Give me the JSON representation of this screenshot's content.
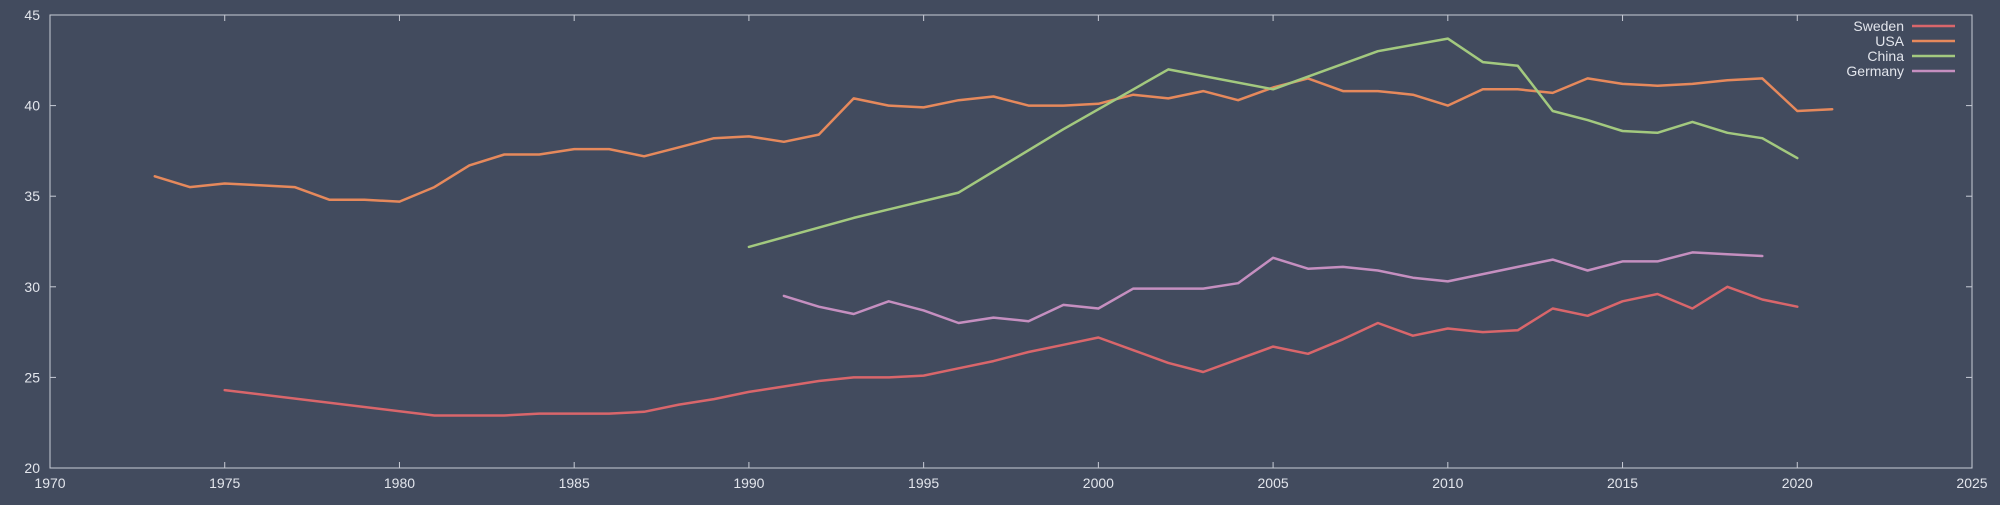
{
  "chart_data": {
    "type": "line",
    "title": "",
    "xlabel": "",
    "ylabel": "",
    "xlim": [
      1970,
      2025
    ],
    "ylim": [
      20,
      45
    ],
    "xticks": [
      1970,
      1975,
      1980,
      1985,
      1990,
      1995,
      2000,
      2005,
      2010,
      2015,
      2020,
      2025
    ],
    "yticks": [
      20,
      25,
      30,
      35,
      40,
      45
    ],
    "grid": false,
    "legend_position": "top-right",
    "colors": {
      "background": "#424b5e",
      "axis": "#c8ccd6",
      "text": "#e2e5ec"
    },
    "series": [
      {
        "name": "Sweden",
        "color": "#d9666b",
        "x": [
          1975,
          1981,
          1982,
          1983,
          1984,
          1985,
          1986,
          1987,
          1988,
          1989,
          1990,
          1991,
          1992,
          1993,
          1994,
          1995,
          1996,
          1997,
          1998,
          1999,
          2000,
          2001,
          2002,
          2003,
          2004,
          2005,
          2006,
          2007,
          2008,
          2009,
          2010,
          2011,
          2012,
          2013,
          2014,
          2015,
          2016,
          2017,
          2018,
          2019,
          2020
        ],
        "y": [
          24.3,
          22.9,
          22.9,
          22.9,
          23.0,
          23.0,
          23.0,
          23.1,
          23.5,
          23.8,
          24.2,
          24.5,
          24.8,
          25.0,
          25.0,
          25.1,
          25.5,
          25.9,
          26.4,
          26.8,
          27.2,
          26.5,
          25.8,
          25.3,
          26.0,
          26.7,
          26.3,
          27.1,
          28.0,
          27.3,
          27.7,
          27.5,
          27.6,
          28.8,
          28.4,
          29.2,
          29.6,
          28.8,
          30.0,
          29.3,
          28.9
        ]
      },
      {
        "name": "USA",
        "color": "#e6895c",
        "x": [
          1973,
          1974,
          1975,
          1976,
          1977,
          1978,
          1979,
          1980,
          1981,
          1982,
          1983,
          1984,
          1985,
          1986,
          1987,
          1988,
          1989,
          1990,
          1991,
          1992,
          1993,
          1994,
          1995,
          1996,
          1997,
          1998,
          1999,
          2000,
          2001,
          2002,
          2003,
          2004,
          2005,
          2006,
          2007,
          2008,
          2009,
          2010,
          2011,
          2012,
          2013,
          2014,
          2015,
          2016,
          2017,
          2018,
          2019,
          2020,
          2021
        ],
        "y": [
          36.1,
          35.5,
          35.7,
          35.6,
          35.5,
          34.8,
          34.8,
          34.7,
          35.5,
          36.7,
          37.3,
          37.3,
          37.6,
          37.6,
          37.2,
          37.7,
          38.2,
          38.3,
          38.0,
          38.4,
          40.4,
          40.0,
          39.9,
          40.3,
          40.5,
          40.0,
          40.0,
          40.1,
          40.6,
          40.4,
          40.8,
          40.3,
          41.0,
          41.5,
          40.8,
          40.8,
          40.6,
          40.0,
          40.9,
          40.9,
          40.7,
          41.5,
          41.2,
          41.1,
          41.2,
          41.4,
          41.5,
          39.7,
          39.8
        ]
      },
      {
        "name": "China",
        "color": "#a3c97f",
        "x": [
          1990,
          1993,
          1996,
          1999,
          2002,
          2005,
          2008,
          2010,
          2011,
          2012,
          2013,
          2014,
          2015,
          2016,
          2017,
          2018,
          2019,
          2020
        ],
        "y": [
          32.2,
          33.8,
          35.2,
          38.7,
          42.0,
          40.9,
          43.0,
          43.7,
          42.4,
          42.2,
          39.7,
          39.2,
          38.6,
          38.5,
          39.1,
          38.5,
          38.2,
          37.1
        ]
      },
      {
        "name": "Germany",
        "color": "#c58fc0",
        "x": [
          1991,
          1992,
          1993,
          1994,
          1995,
          1996,
          1997,
          1998,
          1999,
          2000,
          2001,
          2002,
          2003,
          2004,
          2005,
          2006,
          2007,
          2008,
          2009,
          2010,
          2011,
          2012,
          2013,
          2014,
          2015,
          2016,
          2017,
          2018,
          2019
        ],
        "y": [
          29.5,
          28.9,
          28.5,
          29.2,
          28.7,
          28.0,
          28.3,
          28.1,
          29.0,
          28.8,
          29.9,
          29.9,
          29.9,
          30.2,
          31.6,
          31.0,
          31.1,
          30.9,
          30.5,
          30.3,
          30.7,
          31.1,
          31.5,
          30.9,
          31.4,
          31.4,
          31.9,
          31.8,
          31.7
        ]
      }
    ]
  }
}
